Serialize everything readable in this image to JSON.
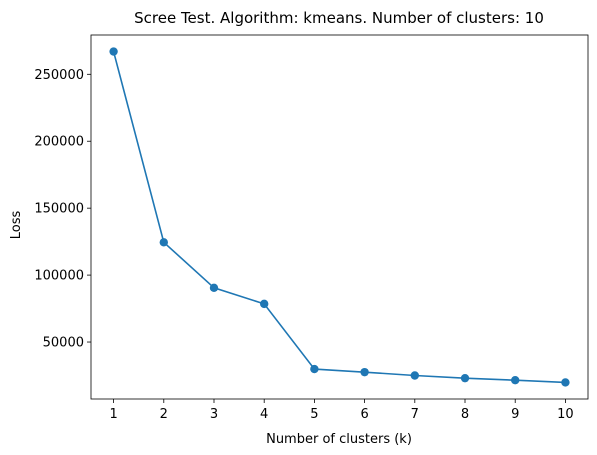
{
  "chart_data": {
    "type": "line",
    "title": "Scree Test. Algorithm: kmeans. Number of clusters: 10",
    "xlabel": "Number of clusters (k)",
    "ylabel": "Loss",
    "x": [
      1,
      2,
      3,
      4,
      5,
      6,
      7,
      8,
      9,
      10
    ],
    "series": [
      {
        "values": [
          267000,
          124500,
          90500,
          78500,
          29800,
          27500,
          25000,
          23000,
          21500,
          19800
        ],
        "color": "#1f77b4",
        "marker": "circle"
      }
    ],
    "xticks": [
      "1",
      "2",
      "3",
      "4",
      "5",
      "6",
      "7",
      "8",
      "9",
      "10"
    ],
    "yticks": [
      "50000",
      "100000",
      "150000",
      "200000",
      "250000"
    ],
    "ytick_values": [
      50000,
      100000,
      150000,
      200000,
      250000
    ],
    "xlim": [
      0.55,
      10.45
    ],
    "ylim": [
      7440,
      279360
    ],
    "grid": false,
    "legend": "none"
  }
}
